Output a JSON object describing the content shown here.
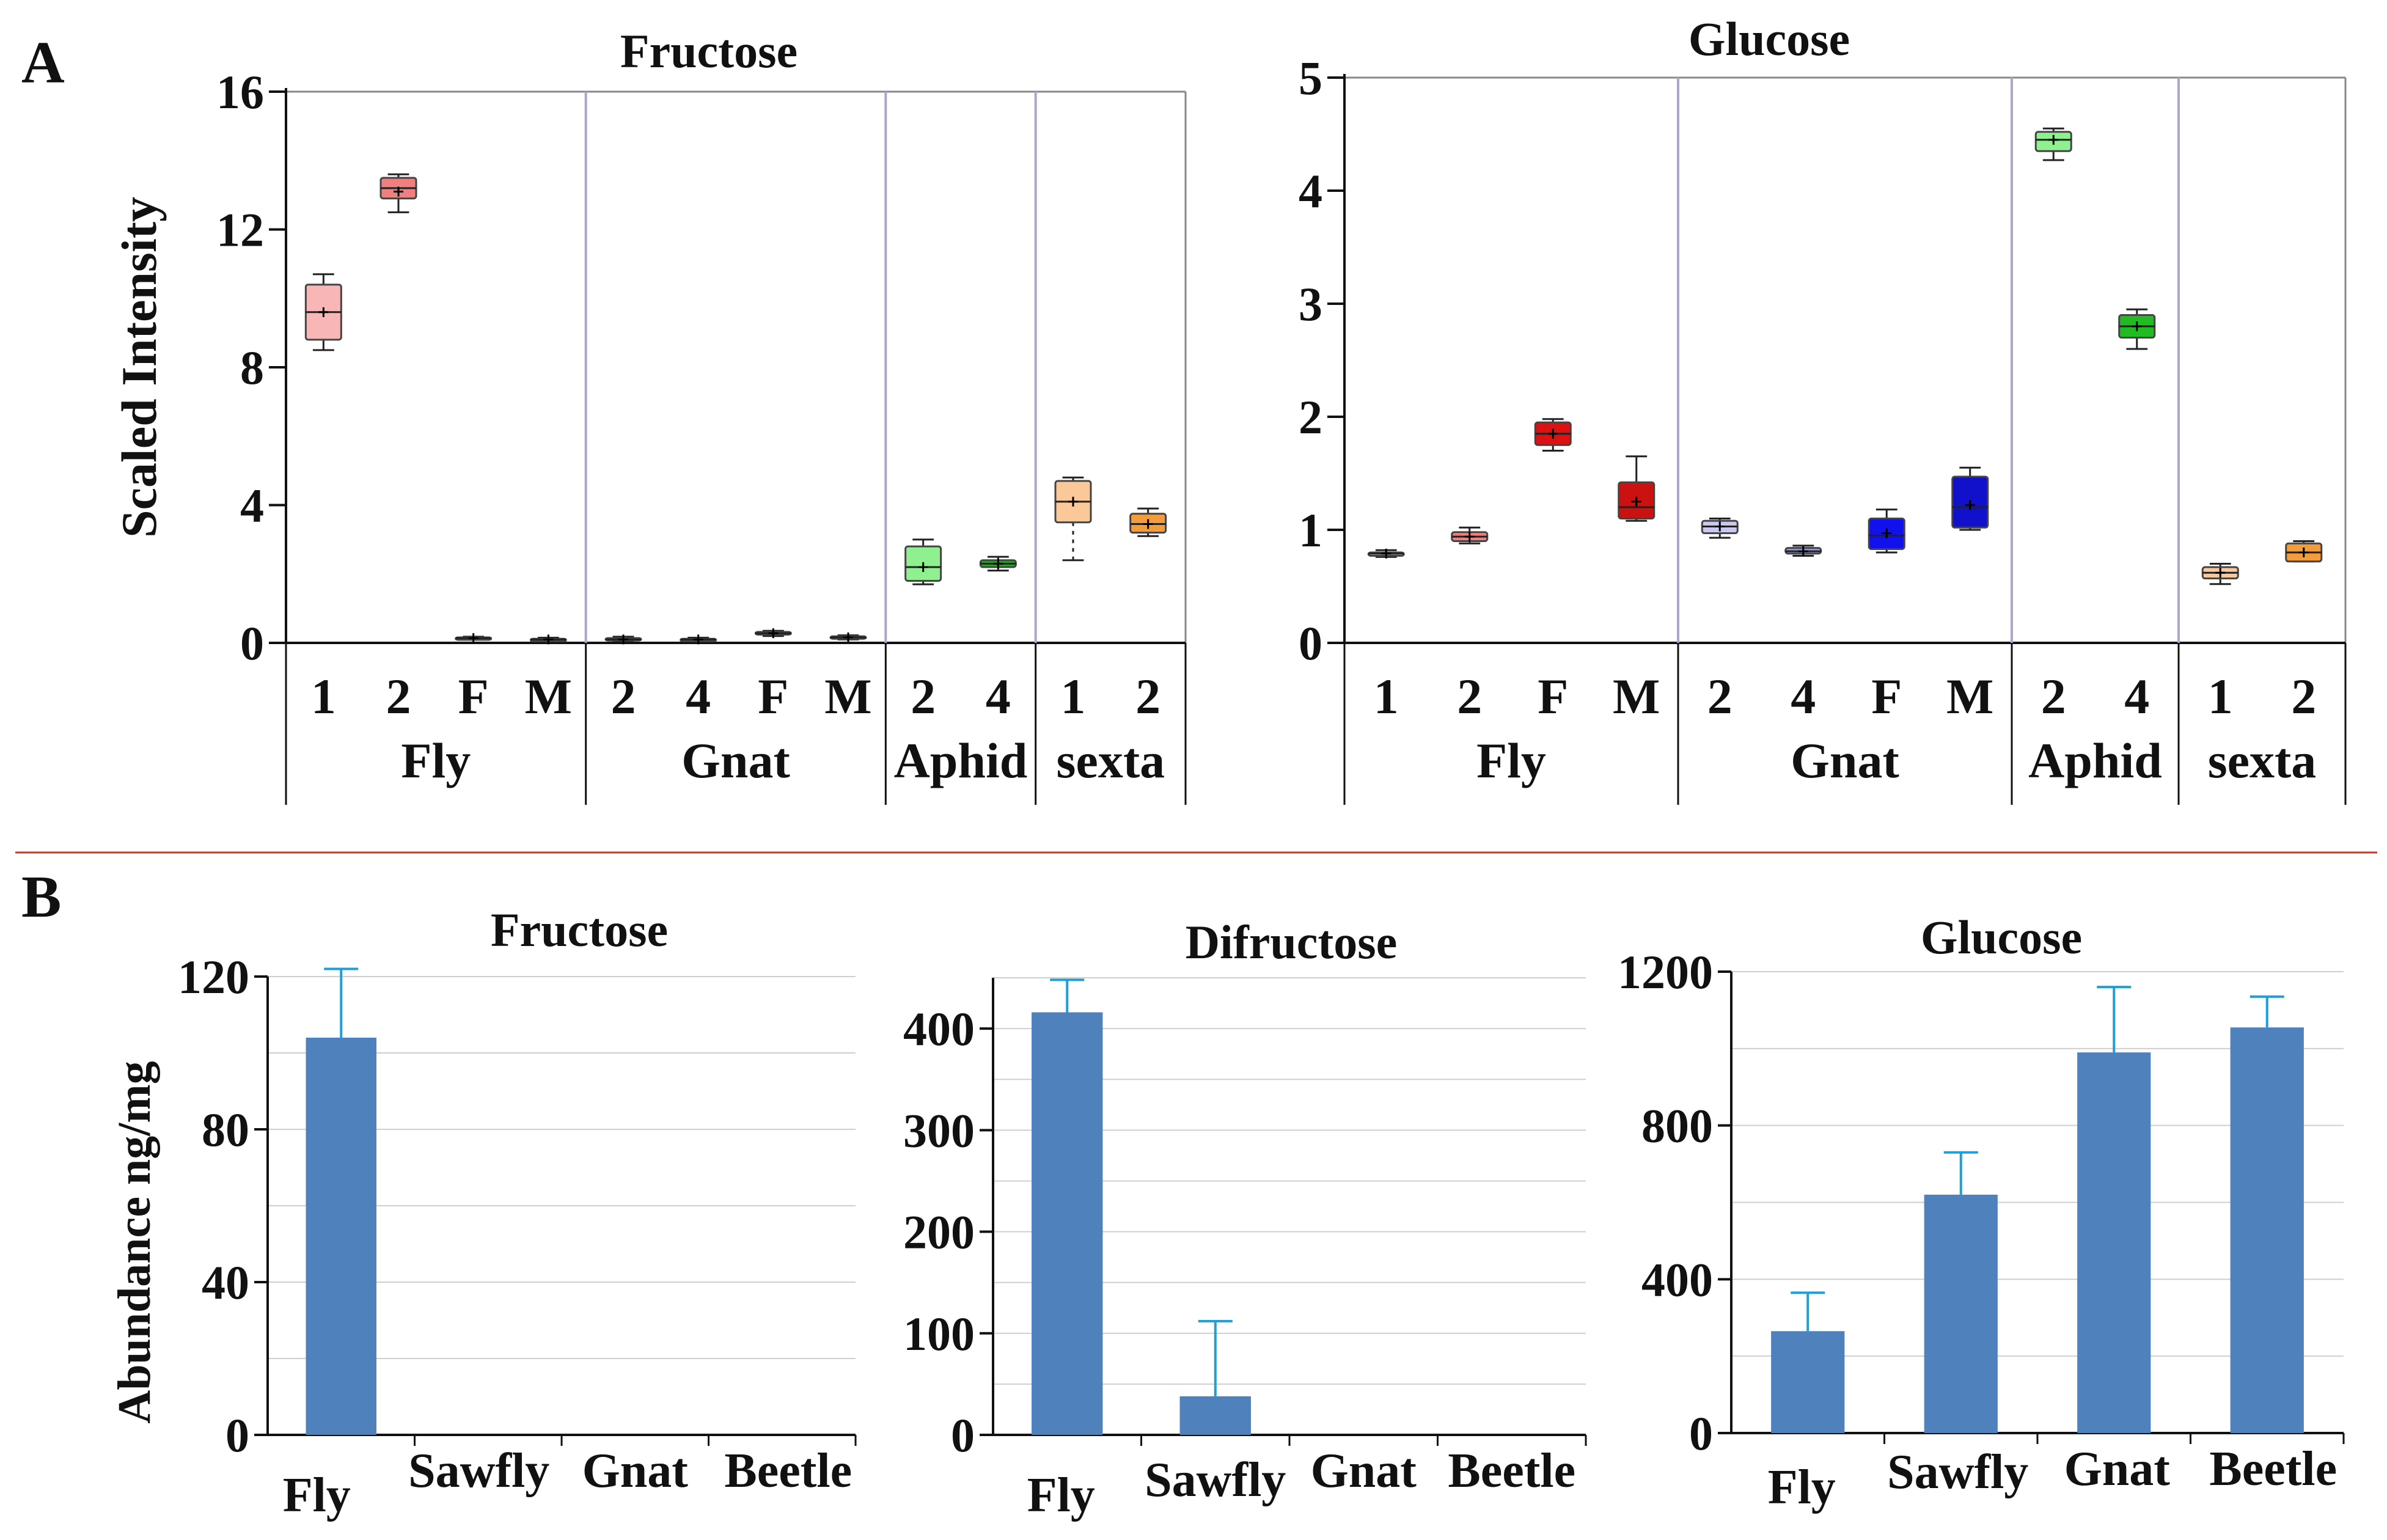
{
  "figure": {
    "panel_a_label": "A",
    "panel_b_label": "B",
    "separator_color": "#c0392b"
  },
  "chart_data": [
    {
      "id": "a_fructose",
      "type": "box",
      "title": "Fructose",
      "ylabel": "Scaled   Intensity",
      "ylim": [
        0,
        16
      ],
      "yticks": [
        0,
        4,
        8,
        12,
        16
      ],
      "groups": [
        {
          "name": "Fly",
          "n": 4
        },
        {
          "name": "Gnat",
          "n": 4
        },
        {
          "name": "Aphid",
          "n": 2
        },
        {
          "name": "sexta",
          "n": 2
        }
      ],
      "boxes": [
        {
          "group": "Fly",
          "label": "1",
          "min": 8.5,
          "q1": 8.8,
          "median": 9.6,
          "mean": 9.6,
          "q3": 10.4,
          "max": 10.7,
          "color": "#f8b6b6",
          "whisker": "solid"
        },
        {
          "group": "Fly",
          "label": "2",
          "min": 12.5,
          "q1": 12.9,
          "median": 13.2,
          "mean": 13.1,
          "q3": 13.5,
          "max": 13.6,
          "color": "#ef8080",
          "whisker": "solid"
        },
        {
          "group": "Fly",
          "label": "F",
          "min": 0.1,
          "q1": 0.12,
          "median": 0.14,
          "mean": 0.14,
          "q3": 0.16,
          "max": 0.18,
          "color": "#d33",
          "whisker": "solid"
        },
        {
          "group": "Fly",
          "label": "M",
          "min": 0.05,
          "q1": 0.08,
          "median": 0.1,
          "mean": 0.1,
          "q3": 0.12,
          "max": 0.15,
          "color": "#b22",
          "whisker": "solid"
        },
        {
          "group": "Gnat",
          "label": "2",
          "min": 0.05,
          "q1": 0.08,
          "median": 0.1,
          "mean": 0.1,
          "q3": 0.14,
          "max": 0.18,
          "color": "#8888ff",
          "whisker": "solid"
        },
        {
          "group": "Gnat",
          "label": "4",
          "min": 0.06,
          "q1": 0.08,
          "median": 0.1,
          "mean": 0.1,
          "q3": 0.12,
          "max": 0.15,
          "color": "#8888ff",
          "whisker": "solid"
        },
        {
          "group": "Gnat",
          "label": "F",
          "min": 0.2,
          "q1": 0.24,
          "median": 0.28,
          "mean": 0.28,
          "q3": 0.32,
          "max": 0.35,
          "color": "#3333ee",
          "whisker": "solid"
        },
        {
          "group": "Gnat",
          "label": "M",
          "min": 0.1,
          "q1": 0.13,
          "median": 0.16,
          "mean": 0.16,
          "q3": 0.19,
          "max": 0.22,
          "color": "#2222bb",
          "whisker": "solid"
        },
        {
          "group": "Aphid",
          "label": "2",
          "min": 1.7,
          "q1": 1.8,
          "median": 2.2,
          "mean": 2.2,
          "q3": 2.8,
          "max": 3.0,
          "color": "#8ef08e",
          "whisker": "solid"
        },
        {
          "group": "Aphid",
          "label": "4",
          "min": 2.1,
          "q1": 2.2,
          "median": 2.3,
          "mean": 2.3,
          "q3": 2.4,
          "max": 2.5,
          "color": "#22aa22",
          "whisker": "solid"
        },
        {
          "group": "sexta",
          "label": "1",
          "min": 2.4,
          "q1": 3.5,
          "median": 4.1,
          "mean": 4.1,
          "q3": 4.7,
          "max": 4.8,
          "color": "#fbc89a",
          "whisker": "dotted"
        },
        {
          "group": "sexta",
          "label": "2",
          "min": 3.1,
          "q1": 3.2,
          "median": 3.45,
          "mean": 3.45,
          "q3": 3.75,
          "max": 3.9,
          "color": "#f39c3d",
          "whisker": "solid"
        }
      ]
    },
    {
      "id": "a_glucose",
      "type": "box",
      "title": "Glucose",
      "ylabel": "",
      "ylim": [
        0,
        5
      ],
      "yticks": [
        0,
        1,
        2,
        3,
        4,
        5
      ],
      "groups": [
        {
          "name": "Fly",
          "n": 4
        },
        {
          "name": "Gnat",
          "n": 4
        },
        {
          "name": "Aphid",
          "n": 2
        },
        {
          "name": "sexta",
          "n": 2
        }
      ],
      "boxes": [
        {
          "group": "Fly",
          "label": "1",
          "min": 0.76,
          "q1": 0.77,
          "median": 0.79,
          "mean": 0.79,
          "q3": 0.8,
          "max": 0.82,
          "color": "#f8b6b6",
          "whisker": "solid"
        },
        {
          "group": "Fly",
          "label": "2",
          "min": 0.88,
          "q1": 0.9,
          "median": 0.94,
          "mean": 0.94,
          "q3": 0.98,
          "max": 1.02,
          "color": "#ef8080",
          "whisker": "solid"
        },
        {
          "group": "Fly",
          "label": "F",
          "min": 1.7,
          "q1": 1.75,
          "median": 1.85,
          "mean": 1.85,
          "q3": 1.95,
          "max": 1.98,
          "color": "#dd1111",
          "whisker": "solid"
        },
        {
          "group": "Fly",
          "label": "M",
          "min": 1.08,
          "q1": 1.1,
          "median": 1.2,
          "mean": 1.25,
          "q3": 1.42,
          "max": 1.65,
          "color": "#cc1111",
          "whisker": "solid"
        },
        {
          "group": "Gnat",
          "label": "2",
          "min": 0.93,
          "q1": 0.97,
          "median": 1.03,
          "mean": 1.03,
          "q3": 1.08,
          "max": 1.1,
          "color": "#c8c8f0",
          "whisker": "solid"
        },
        {
          "group": "Gnat",
          "label": "4",
          "min": 0.77,
          "q1": 0.79,
          "median": 0.81,
          "mean": 0.81,
          "q3": 0.84,
          "max": 0.86,
          "color": "#9999dd",
          "whisker": "solid"
        },
        {
          "group": "Gnat",
          "label": "F",
          "min": 0.8,
          "q1": 0.83,
          "median": 0.95,
          "mean": 0.97,
          "q3": 1.1,
          "max": 1.18,
          "color": "#1111ee",
          "whisker": "solid"
        },
        {
          "group": "Gnat",
          "label": "M",
          "min": 1.0,
          "q1": 1.02,
          "median": 1.2,
          "mean": 1.22,
          "q3": 1.47,
          "max": 1.55,
          "color": "#1111cc",
          "whisker": "solid"
        },
        {
          "group": "Aphid",
          "label": "2",
          "min": 4.27,
          "q1": 4.35,
          "median": 4.45,
          "mean": 4.45,
          "q3": 4.52,
          "max": 4.55,
          "color": "#8ef08e",
          "whisker": "solid"
        },
        {
          "group": "Aphid",
          "label": "4",
          "min": 2.6,
          "q1": 2.7,
          "median": 2.8,
          "mean": 2.8,
          "q3": 2.9,
          "max": 2.95,
          "color": "#22bb22",
          "whisker": "solid"
        },
        {
          "group": "sexta",
          "label": "1",
          "min": 0.52,
          "q1": 0.57,
          "median": 0.62,
          "mean": 0.62,
          "q3": 0.67,
          "max": 0.7,
          "color": "#fbc89a",
          "whisker": "solid"
        },
        {
          "group": "sexta",
          "label": "2",
          "min": 0.72,
          "q1": 0.72,
          "median": 0.8,
          "mean": 0.8,
          "q3": 0.88,
          "max": 0.9,
          "color": "#f39c3d",
          "whisker": "solid"
        }
      ]
    },
    {
      "id": "b_fructose",
      "type": "bar",
      "title": "Fructose",
      "ylabel": "Abundance ng/mg",
      "ylim": [
        0,
        120
      ],
      "yticks": [
        0,
        40,
        80,
        120
      ],
      "gridlines": [
        0,
        20,
        40,
        60,
        80,
        100,
        120
      ],
      "categories": [
        "Fly",
        "Sawfly",
        "Gnat",
        "Beetle"
      ],
      "values": [
        104,
        0,
        0,
        0
      ],
      "errors": [
        18,
        0,
        0,
        0
      ],
      "bar_color": "#4f81bd",
      "error_color": "#1f9fd6"
    },
    {
      "id": "b_difructose",
      "type": "bar",
      "title": "Difructose",
      "ylabel": "",
      "ylim": [
        0,
        450
      ],
      "yticks": [
        0,
        100,
        200,
        300,
        400
      ],
      "gridlines": [
        0,
        50,
        100,
        150,
        200,
        250,
        300,
        350,
        400,
        450
      ],
      "categories": [
        "Fly",
        "Sawfly",
        "Gnat",
        "Beetle"
      ],
      "values": [
        416,
        38,
        0,
        0
      ],
      "errors": [
        32,
        74,
        0,
        0
      ],
      "bar_color": "#4f81bd",
      "error_color": "#1f9fd6"
    },
    {
      "id": "b_glucose",
      "type": "bar",
      "title": "Glucose",
      "ylabel": "",
      "ylim": [
        0,
        1200
      ],
      "yticks": [
        0,
        400,
        800,
        1200
      ],
      "gridlines": [
        0,
        200,
        400,
        600,
        800,
        1000,
        1200
      ],
      "categories": [
        "Fly",
        "Sawfly",
        "Gnat",
        "Beetle"
      ],
      "values": [
        265,
        620,
        990,
        1055
      ],
      "errors": [
        100,
        110,
        170,
        80
      ],
      "bar_color": "#4f81bd",
      "error_color": "#1f9fd6"
    }
  ]
}
